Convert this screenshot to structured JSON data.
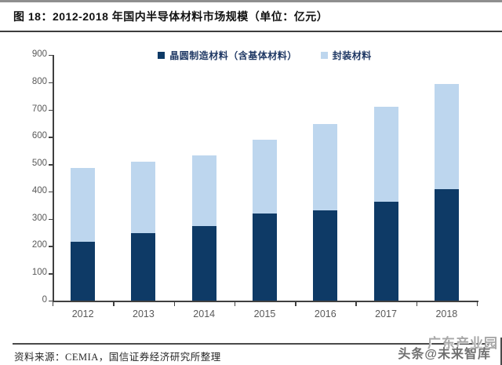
{
  "figure": {
    "title": "图 18：2012-2018 年国内半导体材料市场规模（单位：亿元）",
    "source": "资料来源：CEMIA，国信证券经济研究所整理",
    "watermark_back": "广东产业园",
    "watermark_front": "头条@未来智库"
  },
  "colors": {
    "wafer_series": "#0e3a66",
    "packaging_series": "#bdd6ee",
    "axis": "#404040",
    "tick_label": "#595959",
    "legend_text": "#1f3864"
  },
  "chart_data": {
    "type": "bar",
    "stacked": true,
    "title": "2012-2018 年国内半导体材料市场规模（单位：亿元）",
    "categories": [
      "2012",
      "2013",
      "2014",
      "2015",
      "2016",
      "2017",
      "2018"
    ],
    "series": [
      {
        "name": "晶圆制造材料（含基体材料）",
        "color": "#0e3a66",
        "values": [
          215,
          247,
          273,
          320,
          332,
          363,
          408
        ]
      },
      {
        "name": "封装材料",
        "color": "#bdd6ee",
        "values": [
          270,
          263,
          260,
          270,
          316,
          347,
          385
        ]
      }
    ],
    "totals": [
      485,
      510,
      533,
      590,
      648,
      710,
      793
    ],
    "ylim": [
      0,
      900
    ],
    "yticks": [
      0,
      100,
      200,
      300,
      400,
      500,
      600,
      700,
      800,
      900
    ],
    "xlabel": "",
    "ylabel": "",
    "grid": false,
    "legend_position": "top"
  }
}
